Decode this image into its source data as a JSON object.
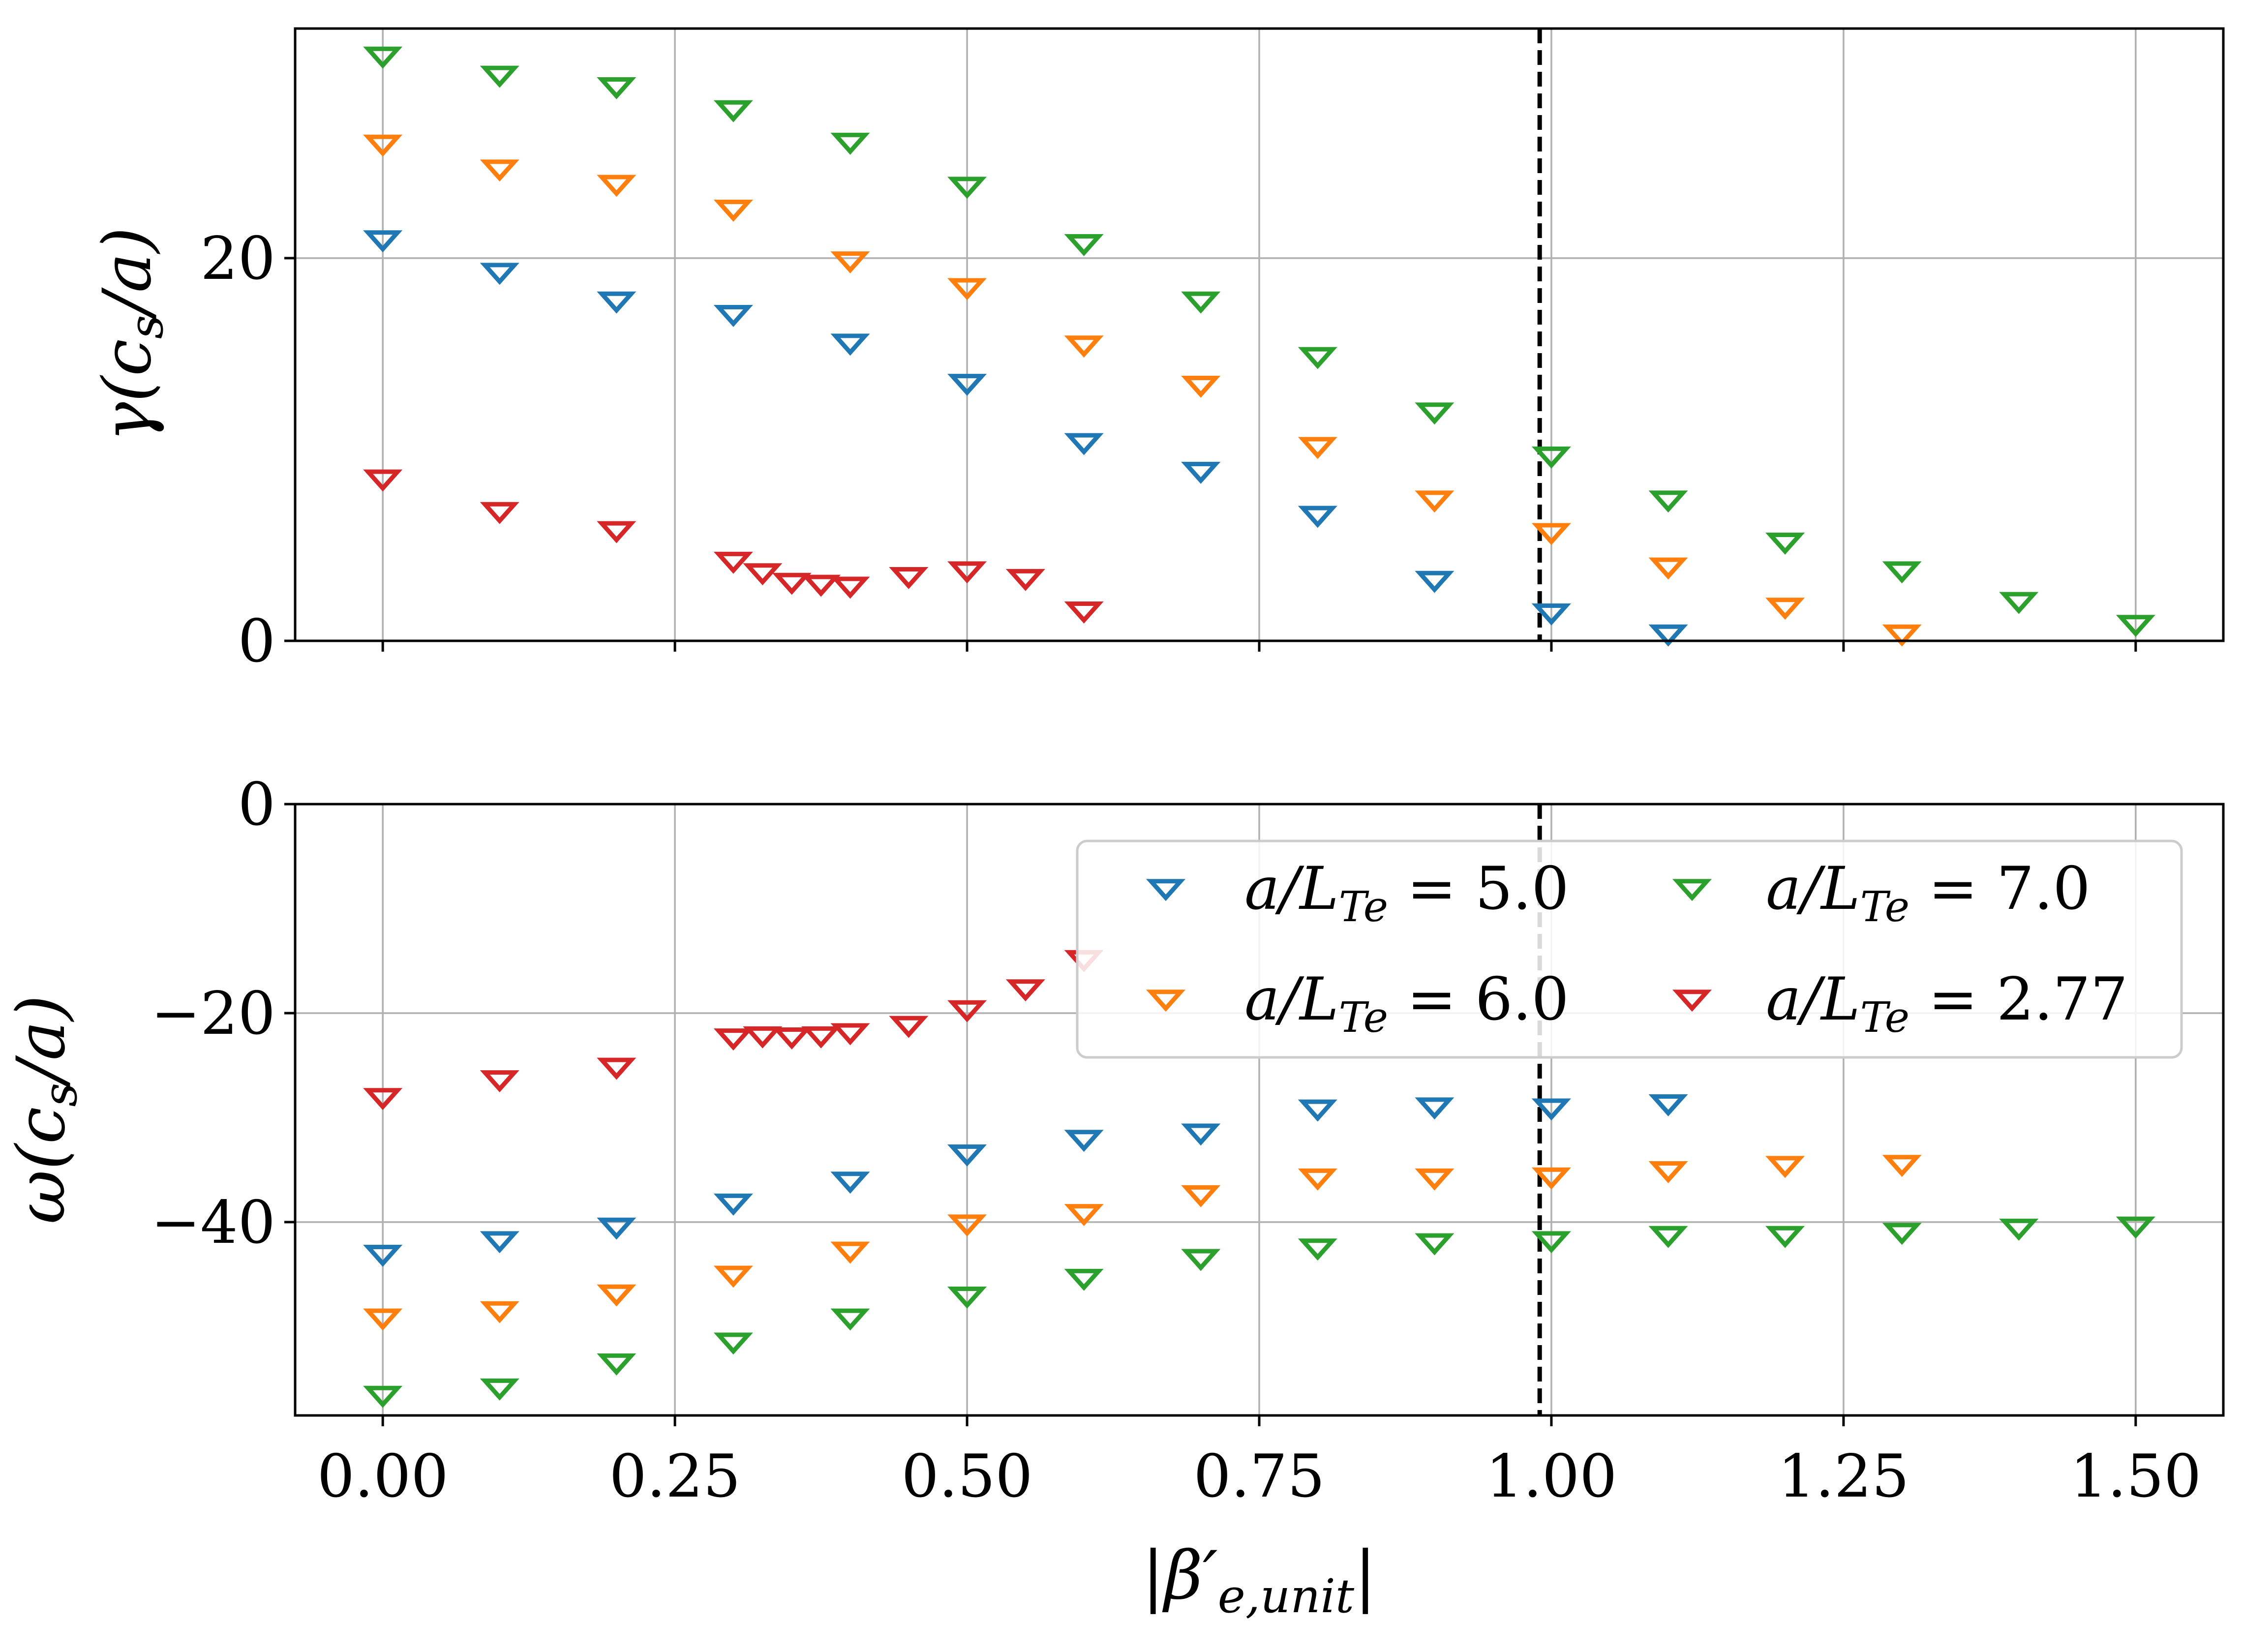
{
  "chart_data": [
    {
      "type": "scatter",
      "panel": "top",
      "ylabel": "γ(c_s/a)",
      "xlabel": "",
      "xlim": [
        -0.075,
        1.575
      ],
      "ylim": [
        0,
        32
      ],
      "yticks": [
        0,
        20
      ],
      "ytick_labels": [
        "0",
        "20"
      ],
      "grid": true,
      "vline_x": 0.99,
      "series": [
        {
          "name": "a/L_Te = 5.0",
          "color": "#1f77b4",
          "x": [
            0.0,
            0.1,
            0.2,
            0.3,
            0.4,
            0.5,
            0.6,
            0.7,
            0.8,
            0.9,
            1.0,
            1.1
          ],
          "y": [
            21.0,
            19.3,
            17.8,
            17.1,
            15.6,
            13.5,
            10.4,
            8.9,
            6.6,
            3.2,
            1.5,
            0.4
          ]
        },
        {
          "name": "a/L_Te = 6.0",
          "color": "#ff7f0e",
          "x": [
            0.0,
            0.1,
            0.2,
            0.3,
            0.4,
            0.5,
            0.6,
            0.7,
            0.8,
            0.9,
            1.0,
            1.1,
            1.2,
            1.3
          ],
          "y": [
            26.0,
            24.7,
            23.9,
            22.6,
            19.9,
            18.5,
            15.5,
            13.4,
            10.2,
            7.4,
            5.7,
            3.9,
            1.8,
            0.4
          ]
        },
        {
          "name": "a/L_Te = 7.0",
          "color": "#2ca02c",
          "x": [
            0.0,
            0.1,
            0.2,
            0.3,
            0.4,
            0.5,
            0.6,
            0.7,
            0.8,
            0.9,
            1.0,
            1.1,
            1.2,
            1.3,
            1.4,
            1.5
          ],
          "y": [
            30.6,
            29.6,
            29.0,
            27.8,
            26.1,
            23.8,
            20.8,
            17.8,
            14.9,
            12.0,
            9.7,
            7.4,
            5.2,
            3.7,
            2.1,
            0.9
          ]
        },
        {
          "name": "a/L_Te = 2.77",
          "color": "#d62728",
          "x": [
            0.0,
            0.1,
            0.2,
            0.3,
            0.325,
            0.35,
            0.375,
            0.4,
            0.45,
            0.5,
            0.55,
            0.6
          ],
          "y": [
            8.5,
            6.8,
            5.8,
            4.2,
            3.6,
            3.1,
            3.0,
            2.9,
            3.4,
            3.7,
            3.3,
            1.6
          ]
        }
      ]
    },
    {
      "type": "scatter",
      "panel": "bottom",
      "ylabel": "ω(c_s/a)",
      "xlabel": "|β′_e,unit|",
      "xlim": [
        -0.075,
        1.575
      ],
      "ylim": [
        -58.5,
        0
      ],
      "yticks": [
        0,
        -20,
        -40
      ],
      "ytick_labels": [
        "0",
        "−20",
        "−40"
      ],
      "xticks": [
        0.0,
        0.25,
        0.5,
        0.75,
        1.0,
        1.25,
        1.5
      ],
      "xtick_labels": [
        "0.00",
        "0.25",
        "0.50",
        "0.75",
        "1.00",
        "1.25",
        "1.50"
      ],
      "grid": true,
      "vline_x": 0.99,
      "legend_position": "top-right",
      "series": [
        {
          "name": "a/L_Te = 5.0",
          "color": "#1f77b4",
          "x": [
            0.0,
            0.1,
            0.2,
            0.3,
            0.4,
            0.5,
            0.6,
            0.7,
            0.8,
            0.9,
            1.0,
            1.1
          ],
          "y": [
            -43.0,
            -41.7,
            -40.4,
            -38.1,
            -36.0,
            -33.4,
            -32.0,
            -31.4,
            -29.1,
            -28.9,
            -29.0,
            -28.6
          ]
        },
        {
          "name": "a/L_Te = 6.0",
          "color": "#ff7f0e",
          "x": [
            0.0,
            0.1,
            0.2,
            0.3,
            0.4,
            0.5,
            0.6,
            0.7,
            0.8,
            0.9,
            1.0,
            1.1,
            1.2,
            1.3
          ],
          "y": [
            -49.1,
            -48.4,
            -46.8,
            -45.0,
            -42.7,
            -40.1,
            -39.1,
            -37.3,
            -35.7,
            -35.7,
            -35.6,
            -35.0,
            -34.5,
            -34.4
          ]
        },
        {
          "name": "a/L_Te = 7.0",
          "color": "#2ca02c",
          "x": [
            0.0,
            0.1,
            0.2,
            0.3,
            0.4,
            0.5,
            0.6,
            0.7,
            0.8,
            0.9,
            1.0,
            1.1,
            1.2,
            1.3,
            1.4,
            1.5
          ],
          "y": [
            -56.5,
            -55.8,
            -53.4,
            -51.4,
            -49.1,
            -47.0,
            -45.3,
            -43.4,
            -42.4,
            -41.9,
            -41.7,
            -41.2,
            -41.2,
            -40.9,
            -40.5,
            -40.3
          ]
        },
        {
          "name": "a/L_Te = 2.77",
          "color": "#d62728",
          "x": [
            0.0,
            0.1,
            0.2,
            0.3,
            0.325,
            0.35,
            0.375,
            0.4,
            0.45,
            0.5,
            0.55,
            0.6
          ],
          "y": [
            -28.0,
            -26.3,
            -25.1,
            -22.3,
            -22.1,
            -22.2,
            -22.1,
            -21.8,
            -21.1,
            -19.6,
            -17.6,
            -14.8
          ]
        }
      ]
    }
  ],
  "legend": {
    "entries": [
      {
        "label_prefix": "a/L",
        "label_sub": "Te",
        "label_suffix": " = 5.0",
        "color": "#1f77b4"
      },
      {
        "label_prefix": "a/L",
        "label_sub": "Te",
        "label_suffix": " = 7.0",
        "color": "#2ca02c"
      },
      {
        "label_prefix": "a/L",
        "label_sub": "Te",
        "label_suffix": " = 6.0",
        "color": "#ff7f0e"
      },
      {
        "label_prefix": "a/L",
        "label_sub": "Te",
        "label_suffix": " = 2.77",
        "color": "#d62728"
      }
    ]
  },
  "labels": {
    "top_ylabel_main": "γ(c",
    "top_ylabel_sub": "s",
    "top_ylabel_end": "/a)",
    "bottom_ylabel_main": "ω(c",
    "bottom_ylabel_sub": "s",
    "bottom_ylabel_end": "/a)",
    "xlabel_main": "|β′",
    "xlabel_sub": "e,unit",
    "xlabel_end": "|"
  }
}
